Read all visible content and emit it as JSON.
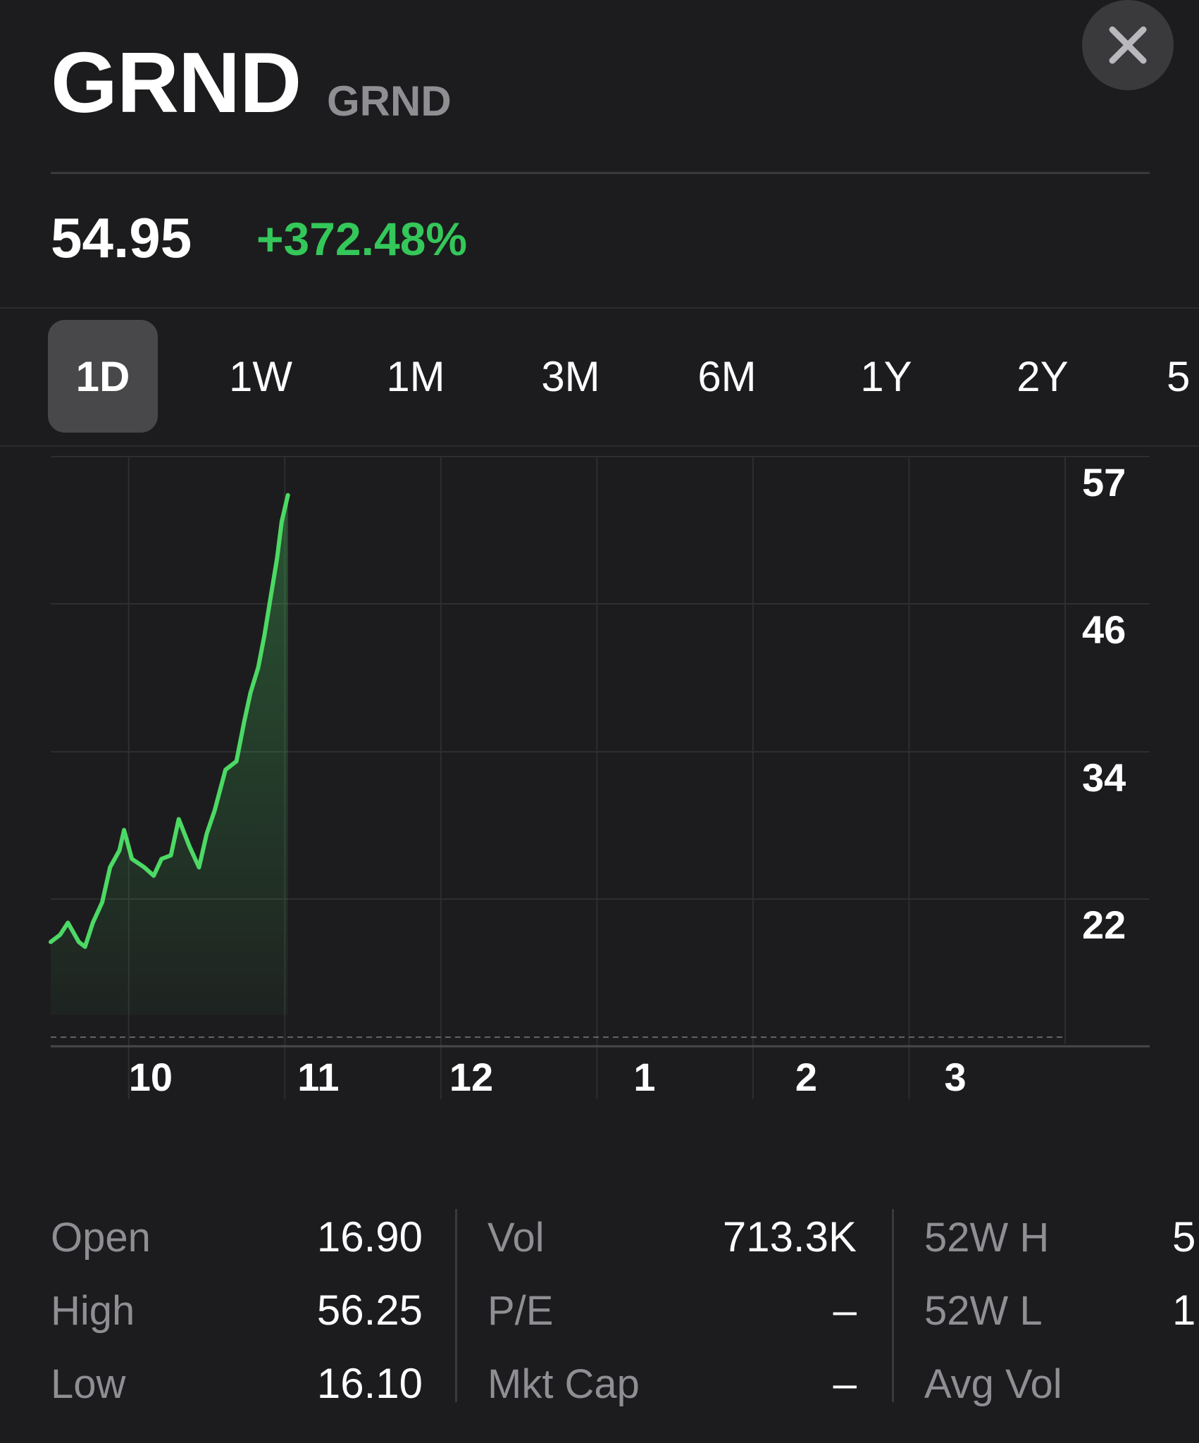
{
  "header": {
    "symbol": "GRND",
    "name": "GRND",
    "close_icon": "close-icon"
  },
  "quote": {
    "price": "54.95",
    "change": "+372.48%",
    "change_color": "#34c759"
  },
  "ranges": {
    "selected": "1D",
    "items": [
      "1D",
      "1W",
      "1M",
      "3M",
      "6M",
      "1Y",
      "2Y",
      "5"
    ]
  },
  "chart_data": {
    "type": "area",
    "line_color": "#4cd964",
    "x_tick_labels": [
      "10",
      "11",
      "12",
      "1",
      "2",
      "3"
    ],
    "y_tick_labels": [
      "57",
      "46",
      "34",
      "22"
    ],
    "ylim": [
      11.6,
      59.8
    ],
    "grid": true,
    "previous_close_line": "dashed",
    "points": [
      [
        9.5,
        19.5
      ],
      [
        9.56,
        20.1
      ],
      [
        9.61,
        21.1
      ],
      [
        9.68,
        19.5
      ],
      [
        9.72,
        19.1
      ],
      [
        9.77,
        21.1
      ],
      [
        9.83,
        22.8
      ],
      [
        9.88,
        25.7
      ],
      [
        9.94,
        27.1
      ],
      [
        9.97,
        28.8
      ],
      [
        10.02,
        26.4
      ],
      [
        10.1,
        25.7
      ],
      [
        10.16,
        25.0
      ],
      [
        10.21,
        26.4
      ],
      [
        10.27,
        26.7
      ],
      [
        10.32,
        29.7
      ],
      [
        10.39,
        27.4
      ],
      [
        10.45,
        25.7
      ],
      [
        10.5,
        28.5
      ],
      [
        10.55,
        30.4
      ],
      [
        10.62,
        33.8
      ],
      [
        10.69,
        34.5
      ],
      [
        10.74,
        37.8
      ],
      [
        10.78,
        40.2
      ],
      [
        10.83,
        42.3
      ],
      [
        10.87,
        45.0
      ],
      [
        10.91,
        48.2
      ],
      [
        10.95,
        51.3
      ],
      [
        10.98,
        54.4
      ],
      [
        11.02,
        56.6
      ]
    ]
  },
  "stats": {
    "columns": [
      {
        "labels": [
          "Open",
          "High",
          "Low"
        ],
        "values": [
          "16.90",
          "56.25",
          "16.10"
        ]
      },
      {
        "labels": [
          "Vol",
          "P/E",
          "Mkt Cap"
        ],
        "values": [
          "713.3K",
          "–",
          "–"
        ]
      },
      {
        "labels": [
          "52W H",
          "52W L",
          "Avg Vol"
        ],
        "values": [
          "5",
          "1",
          ""
        ]
      }
    ]
  }
}
